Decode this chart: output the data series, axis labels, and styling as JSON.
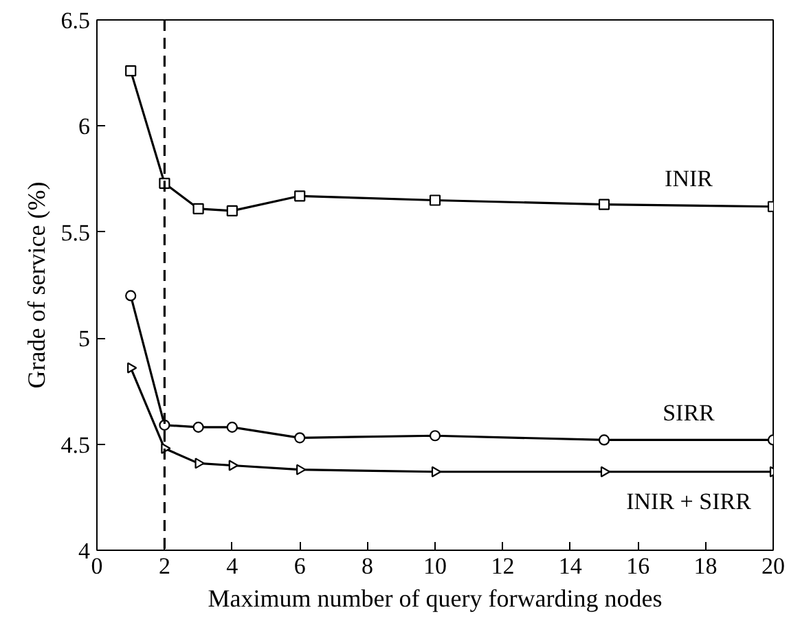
{
  "chart_data": {
    "type": "line",
    "xlabel": "Maximum number of query forwarding nodes",
    "ylabel": "Grade of service (%)",
    "x": [
      1,
      2,
      3,
      4,
      6,
      10,
      15,
      20
    ],
    "series": [
      {
        "name": "INIR",
        "color": "#000000",
        "marker": "square",
        "values": [
          6.26,
          5.73,
          5.61,
          5.6,
          5.67,
          5.65,
          5.63,
          5.62
        ]
      },
      {
        "name": "SIRR",
        "color": "#000000",
        "marker": "circle",
        "values": [
          5.2,
          4.59,
          4.58,
          4.58,
          4.53,
          4.54,
          4.52,
          4.52
        ]
      },
      {
        "name": "INIR + SIRR",
        "color": "#000000",
        "marker": "triangle",
        "values": [
          4.86,
          4.48,
          4.41,
          4.4,
          4.38,
          4.37,
          4.37,
          4.37
        ]
      }
    ],
    "ref_lines": [
      {
        "axis": "x",
        "value": 2,
        "color": "#000000",
        "line_style": "dashed"
      }
    ],
    "xlim": [
      0,
      20
    ],
    "ylim": [
      4,
      6.5
    ],
    "xticks": [
      0,
      2,
      4,
      6,
      8,
      10,
      12,
      14,
      16,
      18,
      20
    ],
    "yticks": [
      4,
      4.5,
      5,
      5.5,
      6,
      6.5
    ],
    "grid": false
  }
}
